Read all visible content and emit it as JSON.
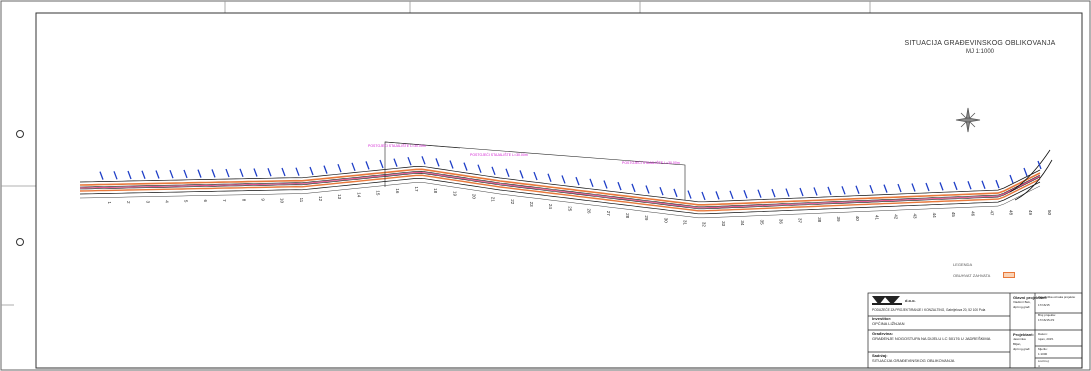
{
  "title": {
    "main": "SITUACIJA GRAĐEVINSKOG OBLIKOVANJA",
    "scale": "MJ 1:1000"
  },
  "legend": {
    "header": "LEGENDA",
    "item_label": "OBUHVAT ZAHVATA",
    "item_color": "#e8783a"
  },
  "colors": {
    "road": "#111111",
    "boundary": "#e8783a",
    "centerline": "#e0206c",
    "drainage": "#1f3fc7",
    "callouts": "#d21fd2"
  },
  "stations": [
    "1",
    "2",
    "3",
    "4",
    "5",
    "6",
    "7",
    "8",
    "9",
    "10",
    "11",
    "12",
    "13",
    "14",
    "15",
    "16",
    "17",
    "18",
    "19",
    "20",
    "21",
    "22",
    "23",
    "24",
    "25",
    "26",
    "27",
    "28",
    "29",
    "30",
    "31",
    "32",
    "33",
    "34",
    "35",
    "36",
    "37",
    "38",
    "39",
    "40",
    "41",
    "42",
    "43",
    "44",
    "45",
    "46",
    "47",
    "48",
    "49",
    "50"
  ],
  "title_block": {
    "company": "d.o.o.",
    "company_line": "PODUZEĆE ZA PROJEKTIRANJE I KONZALTING, Gabrijelova 20, 52 100 Pula",
    "investor_label": "Investitor:",
    "investor": "OPĆINA LIŽNJAN",
    "building_label": "Građevina:",
    "building": "GRAĐENJE NOGOSTUPA NA DIJELU LC 50176 U JADREŠKIMA",
    "drawing_label": "Sadržaj:",
    "drawing": "SITUACIJA GRAĐEVINSKOG OBLIKOVANJA",
    "chief_label": "Glavni projektant:",
    "chief": "Vladimir Bek, dipl.ing.građ.",
    "designer_label": "Projektant:",
    "designer": "Jasminka Biljan, dipl.ing.građ.",
    "project_no_label": "Zajednička oznaka projekta:",
    "project_no": "17/16/15",
    "number_label": "Broj projekta:",
    "number": "17/16/15-P2",
    "date_label": "Datum:",
    "date": "rujan, 2015.",
    "scale_label": "Mjerilo:",
    "scale": "1:1000",
    "sheet_label": "List broj:",
    "sheet": "4"
  },
  "callouts": [
    "POSTOJEĆI STAJALIŠTE L=30.00m",
    "POSTOJEĆI STAJALIŠTE L=30.00m",
    "POSTOJEĆI STAJALIŠTE L=30.00m"
  ]
}
